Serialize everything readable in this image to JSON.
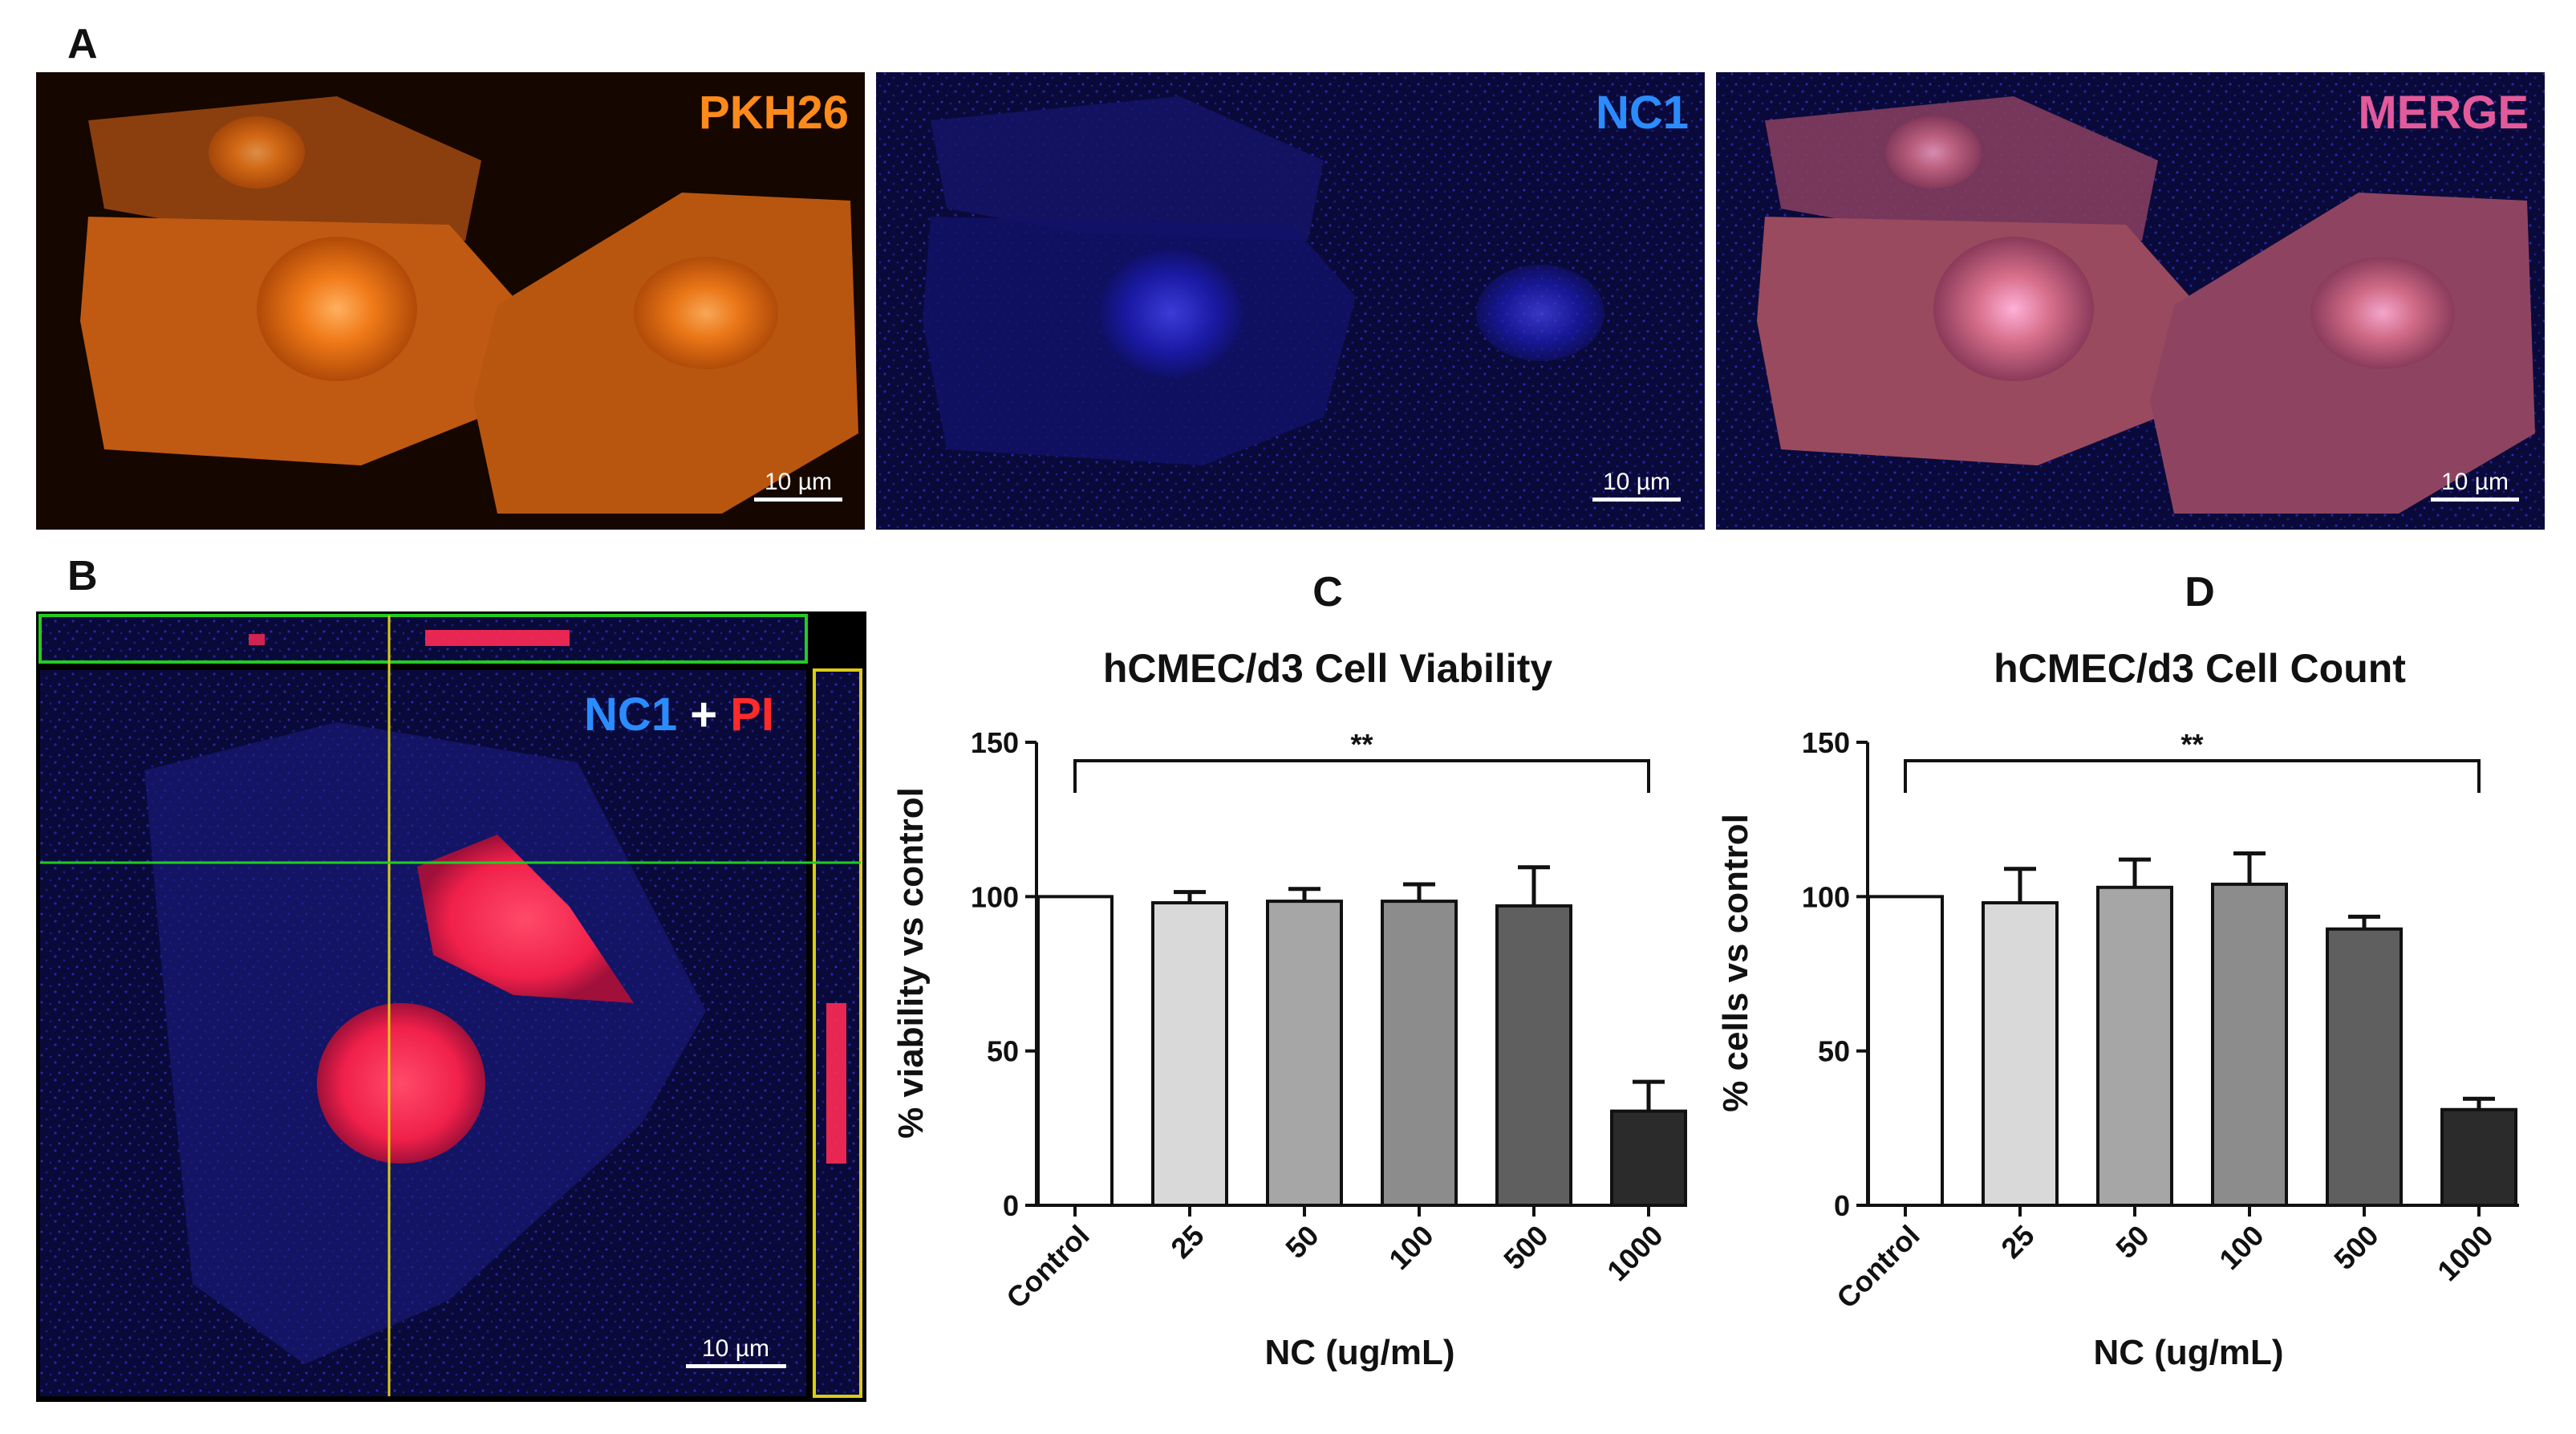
{
  "panels": {
    "a": {
      "label": "A",
      "images": [
        {
          "channel": "PKH26",
          "color": "#ff8a1c",
          "scalebar": "10 µm"
        },
        {
          "channel": "NC1",
          "color": "#2b8cff",
          "scalebar": "10 µm"
        },
        {
          "channel": "MERGE",
          "color": "#e35a9a",
          "scalebar": "10 µm"
        }
      ]
    },
    "b": {
      "label": "B",
      "legend": {
        "part1": "NC1",
        "plus": " + ",
        "part2": "PI",
        "color1": "#2b8cff",
        "color2": "#ff2a2a"
      },
      "scalebar": "10 µm"
    },
    "c": {
      "label": "C"
    },
    "d": {
      "label": "D"
    }
  },
  "chart_data": [
    {
      "type": "bar",
      "title": "hCMEC/d3 Cell Viability",
      "xlabel": "NC (ug/mL)",
      "ylabel": "% viability vs control",
      "categories": [
        "Control",
        "25",
        "50",
        "100",
        "500",
        "1000"
      ],
      "values": [
        100,
        98,
        98.5,
        98.5,
        97,
        30.5
      ],
      "errors": [
        0,
        3.5,
        4,
        5.5,
        12.5,
        9.5
      ],
      "ylim": [
        0,
        150
      ],
      "yticks": [
        "0",
        "50",
        "100",
        "150"
      ],
      "bar_colors": [
        "#ffffff",
        "#d9d9d9",
        "#a6a6a6",
        "#8c8c8c",
        "#5f5f5f",
        "#2b2b2b"
      ],
      "significance": {
        "label": "**",
        "from": "Control",
        "to": "1000"
      },
      "grid": false
    },
    {
      "type": "bar",
      "title": "hCMEC/d3 Cell Count",
      "xlabel": "NC (ug/mL)",
      "ylabel": "% cells vs control",
      "categories": [
        "Control",
        "25",
        "50",
        "100",
        "500",
        "1000"
      ],
      "values": [
        100,
        98,
        103,
        104,
        89.5,
        31
      ],
      "errors": [
        0,
        11,
        9,
        10,
        4,
        3.5
      ],
      "ylim": [
        0,
        150
      ],
      "yticks": [
        "0",
        "50",
        "100",
        "150"
      ],
      "bar_colors": [
        "#ffffff",
        "#d9d9d9",
        "#a6a6a6",
        "#8c8c8c",
        "#5f5f5f",
        "#2b2b2b"
      ],
      "significance": {
        "label": "**",
        "from": "Control",
        "to": "1000"
      },
      "grid": false
    }
  ]
}
